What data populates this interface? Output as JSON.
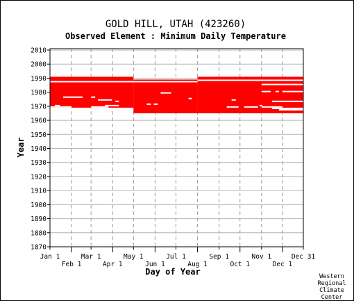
{
  "chart_data": {
    "type": "heatmap",
    "title": "GOLD HILL, UTAH   (423260)",
    "subtitle": "Observed Element : Minimum Daily Temperature",
    "xlabel": "Day of Year",
    "ylabel": "Year",
    "xlim": [
      1,
      365
    ],
    "ylim": [
      1870,
      2011
    ],
    "y_ticks": [
      1870,
      1880,
      1890,
      1900,
      1910,
      1920,
      1930,
      1940,
      1950,
      1960,
      1970,
      1980,
      1990,
      2000,
      2010
    ],
    "x_ticks_upper": [
      {
        "label": "Jan 1",
        "day": 1
      },
      {
        "label": "Mar 1",
        "day": 60
      },
      {
        "label": "May 1",
        "day": 121
      },
      {
        "label": "Jul 1",
        "day": 182
      },
      {
        "label": "Sep 1",
        "day": 244
      },
      {
        "label": "Nov 1",
        "day": 305
      },
      {
        "label": "Dec 31",
        "day": 365
      }
    ],
    "x_ticks_lower": [
      {
        "label": "Feb 1",
        "day": 32
      },
      {
        "label": "Apr 1",
        "day": 91
      },
      {
        "label": "Jun 1",
        "day": 152
      },
      {
        "label": "Aug 1",
        "day": 213
      },
      {
        "label": "Oct 1",
        "day": 274
      },
      {
        "label": "Dec 1",
        "day": 335
      }
    ],
    "grid": true,
    "data_color": "#ff0000",
    "coverage": [
      {
        "year_start": 1969,
        "year_end": 1990,
        "day_start": 1,
        "day_end": 121
      },
      {
        "year_start": 1965,
        "year_end": 1988,
        "day_start": 121,
        "day_end": 213
      },
      {
        "year_start": 1965,
        "year_end": 1990,
        "day_start": 213,
        "day_end": 365
      }
    ],
    "gaps": [
      {
        "year": 1987,
        "day_start": 1,
        "day_end": 213
      },
      {
        "year": 1988,
        "day_start": 213,
        "day_end": 365
      },
      {
        "year": 1985,
        "day_start": 305,
        "day_end": 365
      },
      {
        "year": 1980,
        "day_start": 305,
        "day_end": 318
      },
      {
        "year": 1980,
        "day_start": 325,
        "day_end": 330
      },
      {
        "year": 1980,
        "day_start": 335,
        "day_end": 365
      },
      {
        "year": 1979,
        "day_start": 160,
        "day_end": 175
      },
      {
        "year": 1976,
        "day_start": 20,
        "day_end": 48
      },
      {
        "year": 1976,
        "day_start": 60,
        "day_end": 66
      },
      {
        "year": 1975,
        "day_start": 200,
        "day_end": 205
      },
      {
        "year": 1974,
        "day_start": 70,
        "day_end": 90
      },
      {
        "year": 1974,
        "day_start": 262,
        "day_end": 268
      },
      {
        "year": 1973,
        "day_start": 320,
        "day_end": 365
      },
      {
        "year": 1973,
        "day_start": 95,
        "day_end": 100
      },
      {
        "year": 1971,
        "day_start": 140,
        "day_end": 146
      },
      {
        "year": 1971,
        "day_start": 150,
        "day_end": 156
      },
      {
        "year": 1970,
        "day_start": 8,
        "day_end": 15
      },
      {
        "year": 1970,
        "day_start": 80,
        "day_end": 100
      },
      {
        "year": 1970,
        "day_start": 302,
        "day_end": 306
      },
      {
        "year": 1969,
        "day_start": 1,
        "day_end": 32
      },
      {
        "year": 1969,
        "day_start": 60,
        "day_end": 85
      },
      {
        "year": 1969,
        "day_start": 255,
        "day_end": 272
      },
      {
        "year": 1969,
        "day_start": 280,
        "day_end": 300
      },
      {
        "year": 1969,
        "day_start": 305,
        "day_end": 335
      },
      {
        "year": 1968,
        "day_start": 320,
        "day_end": 365
      },
      {
        "year": 1967,
        "day_start": 330,
        "day_end": 365
      }
    ]
  },
  "credit": [
    "Western",
    "Regional",
    "Climate",
    "Center"
  ]
}
